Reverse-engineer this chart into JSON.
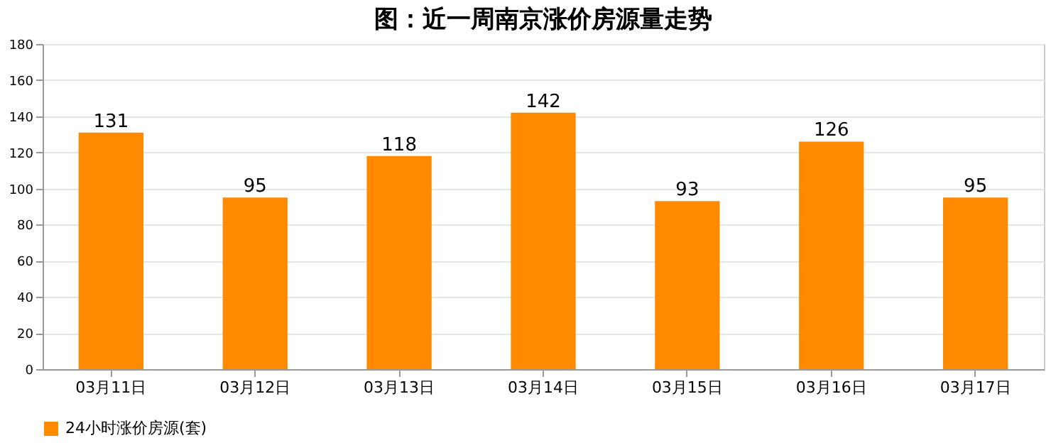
{
  "chart_data": {
    "type": "bar",
    "title": "图：近一周南京涨价房源量走势",
    "categories": [
      "03月11日",
      "03月12日",
      "03月13日",
      "03月14日",
      "03月15日",
      "03月16日",
      "03月17日"
    ],
    "series": [
      {
        "name": "24小时涨价房源(套)",
        "color": "#ff8a00",
        "values": [
          131,
          95,
          118,
          142,
          93,
          126,
          95
        ]
      }
    ],
    "ylim": [
      0,
      180
    ],
    "yticks": [
      0,
      20,
      40,
      60,
      80,
      100,
      120,
      140,
      160,
      180
    ],
    "grid": "y",
    "legend": "bottom",
    "data_labels": true
  }
}
